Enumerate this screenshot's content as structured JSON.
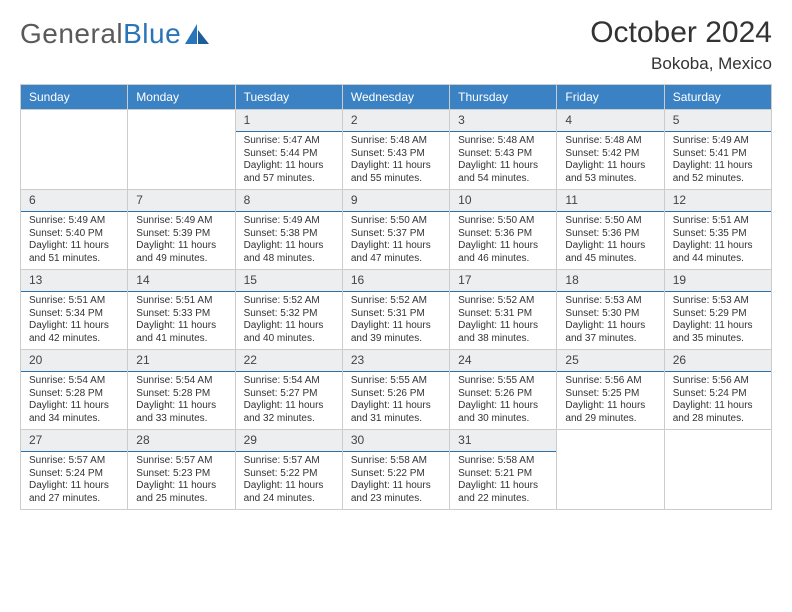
{
  "logo": {
    "text1": "General",
    "text2": "Blue"
  },
  "header": {
    "title": "October 2024",
    "location": "Bokoba, Mexico"
  },
  "dayNames": [
    "Sunday",
    "Monday",
    "Tuesday",
    "Wednesday",
    "Thursday",
    "Friday",
    "Saturday"
  ],
  "colors": {
    "header_bg": "#3b82c4",
    "accent": "#2f6fa8",
    "cell_bg": "#eceef0",
    "text": "#222222",
    "muted": "#555555",
    "page_bg": "#ffffff"
  },
  "firstWeekdayOffset": 2,
  "cells": [
    {
      "day": 1,
      "sunrise": "5:47 AM",
      "sunset": "5:44 PM",
      "daylight": "11 hours and 57 minutes."
    },
    {
      "day": 2,
      "sunrise": "5:48 AM",
      "sunset": "5:43 PM",
      "daylight": "11 hours and 55 minutes."
    },
    {
      "day": 3,
      "sunrise": "5:48 AM",
      "sunset": "5:43 PM",
      "daylight": "11 hours and 54 minutes."
    },
    {
      "day": 4,
      "sunrise": "5:48 AM",
      "sunset": "5:42 PM",
      "daylight": "11 hours and 53 minutes."
    },
    {
      "day": 5,
      "sunrise": "5:49 AM",
      "sunset": "5:41 PM",
      "daylight": "11 hours and 52 minutes."
    },
    {
      "day": 6,
      "sunrise": "5:49 AM",
      "sunset": "5:40 PM",
      "daylight": "11 hours and 51 minutes."
    },
    {
      "day": 7,
      "sunrise": "5:49 AM",
      "sunset": "5:39 PM",
      "daylight": "11 hours and 49 minutes."
    },
    {
      "day": 8,
      "sunrise": "5:49 AM",
      "sunset": "5:38 PM",
      "daylight": "11 hours and 48 minutes."
    },
    {
      "day": 9,
      "sunrise": "5:50 AM",
      "sunset": "5:37 PM",
      "daylight": "11 hours and 47 minutes."
    },
    {
      "day": 10,
      "sunrise": "5:50 AM",
      "sunset": "5:36 PM",
      "daylight": "11 hours and 46 minutes."
    },
    {
      "day": 11,
      "sunrise": "5:50 AM",
      "sunset": "5:36 PM",
      "daylight": "11 hours and 45 minutes."
    },
    {
      "day": 12,
      "sunrise": "5:51 AM",
      "sunset": "5:35 PM",
      "daylight": "11 hours and 44 minutes."
    },
    {
      "day": 13,
      "sunrise": "5:51 AM",
      "sunset": "5:34 PM",
      "daylight": "11 hours and 42 minutes."
    },
    {
      "day": 14,
      "sunrise": "5:51 AM",
      "sunset": "5:33 PM",
      "daylight": "11 hours and 41 minutes."
    },
    {
      "day": 15,
      "sunrise": "5:52 AM",
      "sunset": "5:32 PM",
      "daylight": "11 hours and 40 minutes."
    },
    {
      "day": 16,
      "sunrise": "5:52 AM",
      "sunset": "5:31 PM",
      "daylight": "11 hours and 39 minutes."
    },
    {
      "day": 17,
      "sunrise": "5:52 AM",
      "sunset": "5:31 PM",
      "daylight": "11 hours and 38 minutes."
    },
    {
      "day": 18,
      "sunrise": "5:53 AM",
      "sunset": "5:30 PM",
      "daylight": "11 hours and 37 minutes."
    },
    {
      "day": 19,
      "sunrise": "5:53 AM",
      "sunset": "5:29 PM",
      "daylight": "11 hours and 35 minutes."
    },
    {
      "day": 20,
      "sunrise": "5:54 AM",
      "sunset": "5:28 PM",
      "daylight": "11 hours and 34 minutes."
    },
    {
      "day": 21,
      "sunrise": "5:54 AM",
      "sunset": "5:28 PM",
      "daylight": "11 hours and 33 minutes."
    },
    {
      "day": 22,
      "sunrise": "5:54 AM",
      "sunset": "5:27 PM",
      "daylight": "11 hours and 32 minutes."
    },
    {
      "day": 23,
      "sunrise": "5:55 AM",
      "sunset": "5:26 PM",
      "daylight": "11 hours and 31 minutes."
    },
    {
      "day": 24,
      "sunrise": "5:55 AM",
      "sunset": "5:26 PM",
      "daylight": "11 hours and 30 minutes."
    },
    {
      "day": 25,
      "sunrise": "5:56 AM",
      "sunset": "5:25 PM",
      "daylight": "11 hours and 29 minutes."
    },
    {
      "day": 26,
      "sunrise": "5:56 AM",
      "sunset": "5:24 PM",
      "daylight": "11 hours and 28 minutes."
    },
    {
      "day": 27,
      "sunrise": "5:57 AM",
      "sunset": "5:24 PM",
      "daylight": "11 hours and 27 minutes."
    },
    {
      "day": 28,
      "sunrise": "5:57 AM",
      "sunset": "5:23 PM",
      "daylight": "11 hours and 25 minutes."
    },
    {
      "day": 29,
      "sunrise": "5:57 AM",
      "sunset": "5:22 PM",
      "daylight": "11 hours and 24 minutes."
    },
    {
      "day": 30,
      "sunrise": "5:58 AM",
      "sunset": "5:22 PM",
      "daylight": "11 hours and 23 minutes."
    },
    {
      "day": 31,
      "sunrise": "5:58 AM",
      "sunset": "5:21 PM",
      "daylight": "11 hours and 22 minutes."
    }
  ],
  "labels": {
    "sunrise": "Sunrise:",
    "sunset": "Sunset:",
    "daylight": "Daylight:"
  }
}
